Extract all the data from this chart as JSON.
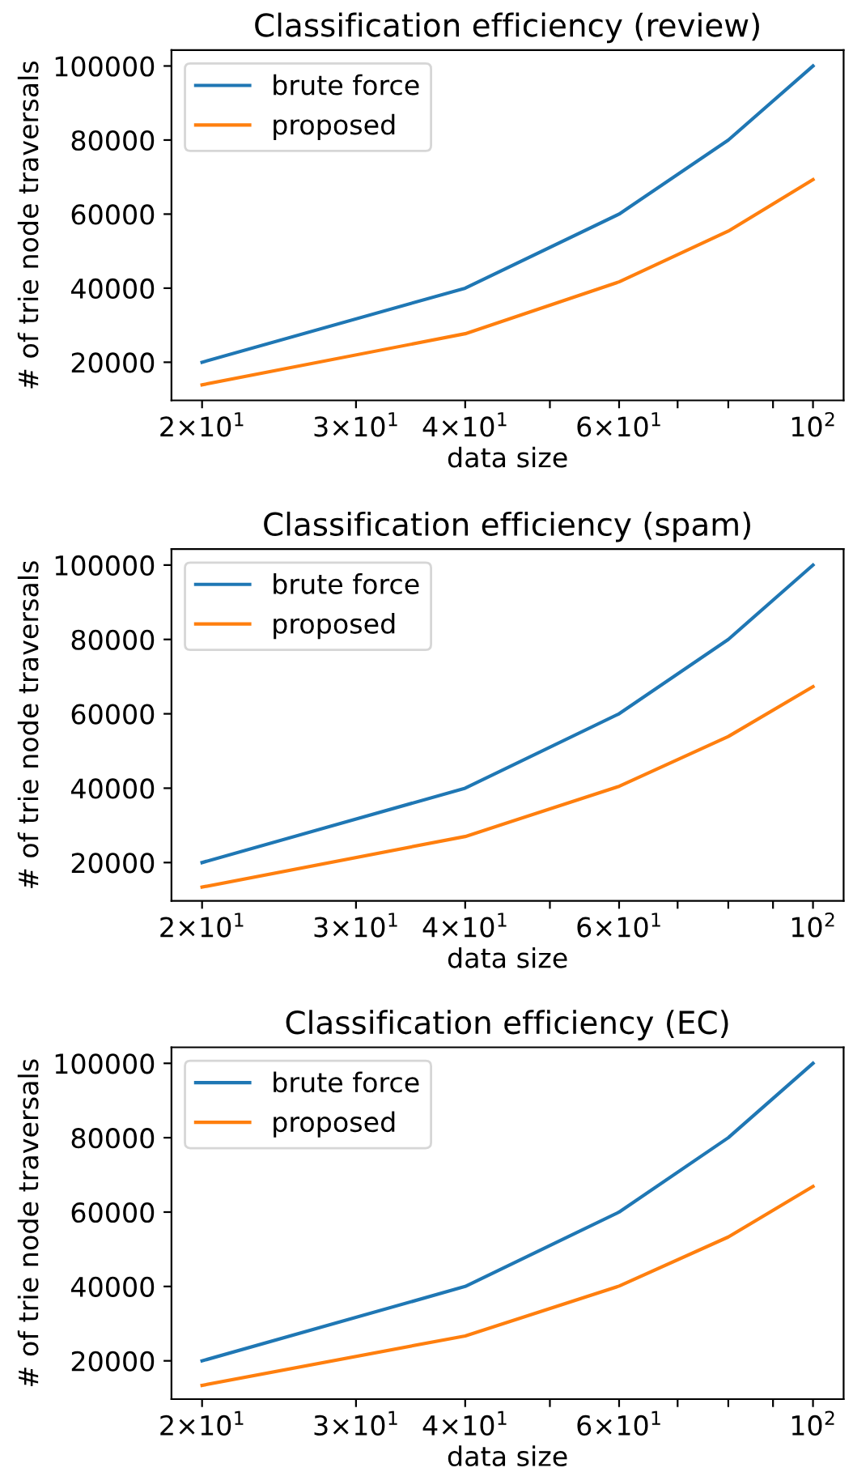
{
  "chart_data": [
    {
      "type": "line",
      "title": "Classification efficiency (review)",
      "xlabel": "data size",
      "ylabel": "# of trie node traversals",
      "x": [
        20,
        40,
        60,
        80,
        100
      ],
      "series": [
        {
          "name": "brute force",
          "color": "#1f77b4",
          "values": [
            20000,
            40000,
            60000,
            80000,
            100000
          ]
        },
        {
          "name": "proposed",
          "color": "#ff7f0e",
          "values": [
            13900,
            27700,
            41700,
            55400,
            69300
          ]
        }
      ],
      "log": "x",
      "xlim": [
        18.45,
        108.4
      ],
      "ylim": [
        9700,
        104300
      ],
      "xticks": [
        {
          "value": 20,
          "label": "2×10$^{1}$"
        },
        {
          "value": 30,
          "label": "3×10$^{1}$"
        },
        {
          "value": 40,
          "label": "4×10$^{1}$"
        },
        {
          "value": 50,
          "label": null
        },
        {
          "value": 60,
          "label": "6×10$^{1}$"
        },
        {
          "value": 70,
          "label": null
        },
        {
          "value": 80,
          "label": null
        },
        {
          "value": 90,
          "label": null
        },
        {
          "value": 100,
          "label": "10$^{2}$"
        }
      ],
      "yticks": [
        20000,
        40000,
        60000,
        80000,
        100000
      ],
      "legend": "top left",
      "grid": false,
      "marker": "none",
      "line_style": "solid"
    },
    {
      "type": "line",
      "title": "Classification efficiency (spam)",
      "xlabel": "data size",
      "ylabel": "# of trie node traversals",
      "x": [
        20,
        40,
        60,
        80,
        100
      ],
      "series": [
        {
          "name": "brute force",
          "color": "#1f77b4",
          "values": [
            20000,
            40000,
            60000,
            80000,
            100000
          ]
        },
        {
          "name": "proposed",
          "color": "#ff7f0e",
          "values": [
            13400,
            27000,
            40500,
            53900,
            67300
          ]
        }
      ],
      "log": "x",
      "xlim": [
        18.45,
        108.4
      ],
      "ylim": [
        9700,
        104300
      ],
      "xticks": [
        {
          "value": 20,
          "label": "2×10$^{1}$"
        },
        {
          "value": 30,
          "label": "3×10$^{1}$"
        },
        {
          "value": 40,
          "label": "4×10$^{1}$"
        },
        {
          "value": 50,
          "label": null
        },
        {
          "value": 60,
          "label": "6×10$^{1}$"
        },
        {
          "value": 70,
          "label": null
        },
        {
          "value": 80,
          "label": null
        },
        {
          "value": 90,
          "label": null
        },
        {
          "value": 100,
          "label": "10$^{2}$"
        }
      ],
      "yticks": [
        20000,
        40000,
        60000,
        80000,
        100000
      ],
      "legend": "top left",
      "grid": false,
      "marker": "none",
      "line_style": "solid"
    },
    {
      "type": "line",
      "title": "Classification efficiency (EC)",
      "xlabel": "data size",
      "ylabel": "# of trie node traversals",
      "x": [
        20,
        40,
        60,
        80,
        100
      ],
      "series": [
        {
          "name": "brute force",
          "color": "#1f77b4",
          "values": [
            20000,
            40000,
            60000,
            80000,
            100000
          ]
        },
        {
          "name": "proposed",
          "color": "#ff7f0e",
          "values": [
            13400,
            26700,
            40100,
            53300,
            66900
          ]
        }
      ],
      "log": "x",
      "xlim": [
        18.45,
        108.4
      ],
      "ylim": [
        9700,
        104300
      ],
      "xticks": [
        {
          "value": 20,
          "label": "2×10$^{1}$"
        },
        {
          "value": 30,
          "label": "3×10$^{1}$"
        },
        {
          "value": 40,
          "label": "4×10$^{1}$"
        },
        {
          "value": 50,
          "label": null
        },
        {
          "value": 60,
          "label": "6×10$^{1}$"
        },
        {
          "value": 70,
          "label": null
        },
        {
          "value": 80,
          "label": null
        },
        {
          "value": 90,
          "label": null
        },
        {
          "value": 100,
          "label": "10$^{2}$"
        }
      ],
      "yticks": [
        20000,
        40000,
        60000,
        80000,
        100000
      ],
      "legend": "top left",
      "grid": false,
      "marker": "none",
      "line_style": "solid"
    }
  ]
}
